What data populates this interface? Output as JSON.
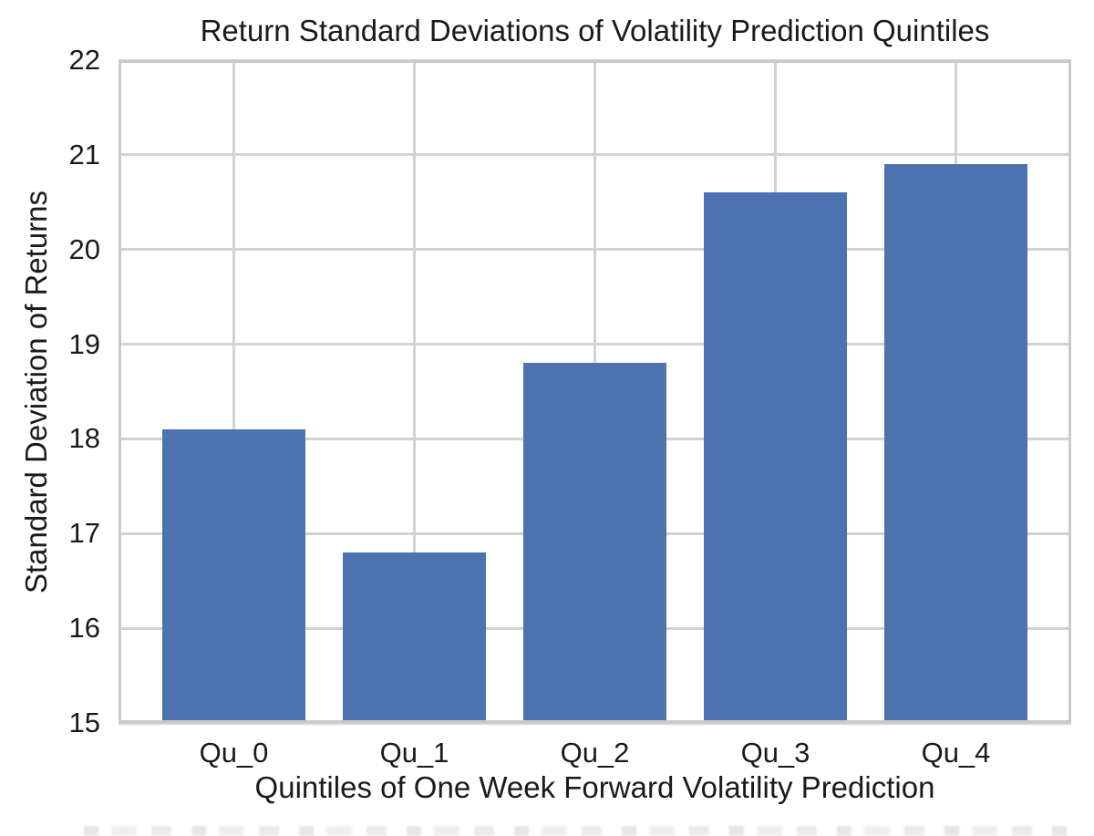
{
  "chart_data": {
    "type": "bar",
    "title": "Return Standard Deviations of Volatility Prediction Quintiles",
    "xlabel": "Quintiles of One Week Forward Volatility Prediction",
    "ylabel": "Standard Deviation of Returns",
    "categories": [
      "Qu_0",
      "Qu_1",
      "Qu_2",
      "Qu_3",
      "Qu_4"
    ],
    "values": [
      18.1,
      16.8,
      18.8,
      20.6,
      20.9
    ],
    "ylim": [
      15,
      22
    ],
    "yticks": [
      15,
      16,
      17,
      18,
      19,
      20,
      21,
      22
    ],
    "grid": "both",
    "legend": "none",
    "bar_color": "#4c72b0",
    "grid_color": "#d2d2d2",
    "axis_border_color": "#c9c9c9",
    "text_color": "#1a1a1a",
    "background_color": "#ffffff"
  }
}
